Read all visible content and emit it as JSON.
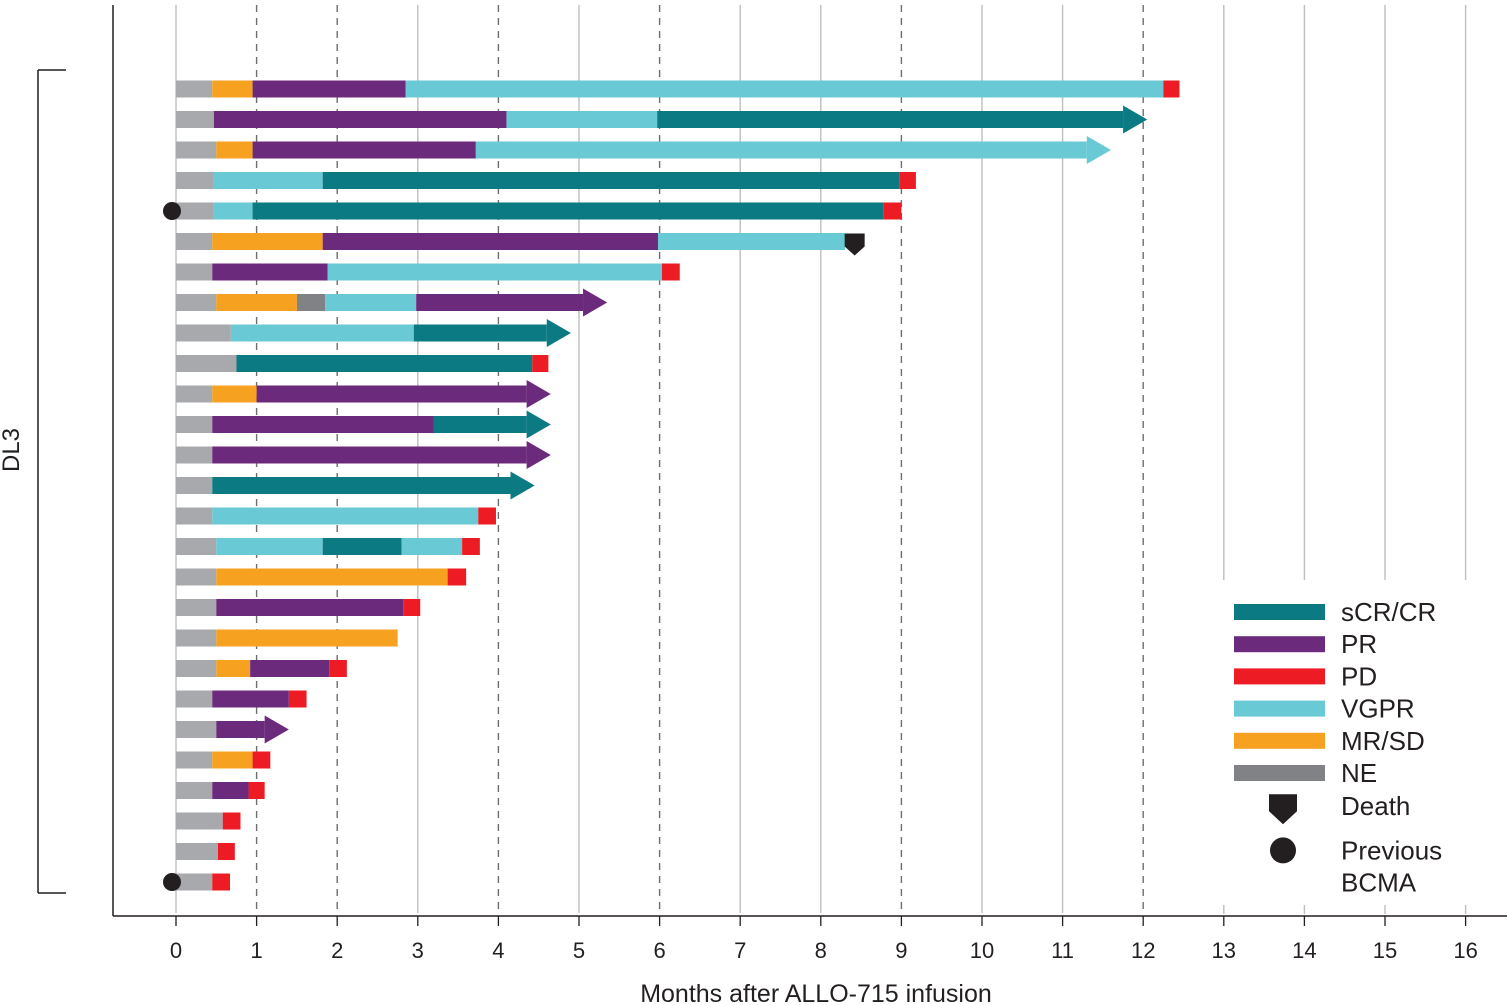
{
  "chart_data": {
    "type": "swimmer",
    "xlabel": "Months after ALLO-715 infusion",
    "xlim": [
      0,
      16
    ],
    "x_ticks": [
      "0",
      "1",
      "2",
      "3",
      "4",
      "5",
      "6",
      "7",
      "8",
      "9",
      "10",
      "11",
      "12",
      "13",
      "14",
      "15",
      "16"
    ],
    "dashed_gridlines_at": [
      1,
      2,
      4,
      6,
      9,
      12
    ],
    "group_label": "DL3",
    "colors": {
      "pre": "#a7a9ac",
      "sCR/CR": "#0b7a82",
      "PR": "#6c2a7c",
      "PD": "#ed1c24",
      "VGPR": "#69c9d4",
      "MR/SD": "#f7a120",
      "NE": "#808285",
      "marker": "#231f20"
    },
    "legend": [
      {
        "label": "sCR/CR",
        "key": "sCR/CR",
        "kind": "bar"
      },
      {
        "label": "PR",
        "key": "PR",
        "kind": "bar"
      },
      {
        "label": "PD",
        "key": "PD",
        "kind": "bar"
      },
      {
        "label": "VGPR",
        "key": "VGPR",
        "kind": "bar"
      },
      {
        "label": "MR/SD",
        "key": "MR/SD",
        "kind": "bar"
      },
      {
        "label": "NE",
        "key": "NE",
        "kind": "bar"
      },
      {
        "label": "Death",
        "key": "death",
        "kind": "death"
      },
      {
        "label": "Previous",
        "label2": "BCMA",
        "key": "bcma",
        "kind": "dot"
      }
    ],
    "patients": [
      {
        "segments": [
          [
            "pre",
            0,
            0.45
          ],
          [
            "MR/SD",
            0.45,
            0.95
          ],
          [
            "PR",
            0.95,
            2.85
          ],
          [
            "VGPR",
            2.85,
            12.25
          ],
          [
            "PD",
            12.25,
            12.45
          ]
        ],
        "ongoing": false
      },
      {
        "segments": [
          [
            "pre",
            0,
            0.47
          ],
          [
            "PR",
            0.47,
            4.1
          ],
          [
            "VGPR",
            4.1,
            5.97
          ],
          [
            "sCR/CR",
            5.97,
            11.75
          ]
        ],
        "ongoing": true,
        "end": 12.05
      },
      {
        "segments": [
          [
            "pre",
            0,
            0.5
          ],
          [
            "MR/SD",
            0.5,
            0.95
          ],
          [
            "PR",
            0.95,
            3.72
          ],
          [
            "VGPR",
            3.72,
            11.3
          ]
        ],
        "ongoing": true,
        "end": 11.6
      },
      {
        "segments": [
          [
            "pre",
            0,
            0.47
          ],
          [
            "VGPR",
            0.47,
            1.82
          ],
          [
            "sCR/CR",
            1.82,
            8.98
          ],
          [
            "PD",
            8.98,
            9.18
          ]
        ],
        "ongoing": false
      },
      {
        "segments": [
          [
            "pre",
            0,
            0.47
          ],
          [
            "VGPR",
            0.47,
            0.95
          ],
          [
            "sCR/CR",
            0.95,
            8.78
          ],
          [
            "PD",
            8.78,
            9.0
          ]
        ],
        "ongoing": false,
        "prior_bcma": true
      },
      {
        "segments": [
          [
            "pre",
            0,
            0.45
          ],
          [
            "MR/SD",
            0.45,
            1.82
          ],
          [
            "PR",
            1.82,
            5.98
          ],
          [
            "VGPR",
            5.98,
            8.3
          ]
        ],
        "ongoing": false,
        "death": 8.42
      },
      {
        "segments": [
          [
            "pre",
            0,
            0.45
          ],
          [
            "PR",
            0.45,
            1.88
          ],
          [
            "VGPR",
            1.88,
            6.03
          ],
          [
            "PD",
            6.03,
            6.25
          ]
        ],
        "ongoing": false
      },
      {
        "segments": [
          [
            "pre",
            0,
            0.5
          ],
          [
            "MR/SD",
            0.5,
            1.5
          ],
          [
            "NE",
            1.5,
            1.85
          ],
          [
            "VGPR",
            1.85,
            2.98
          ],
          [
            "PR",
            2.98,
            5.05
          ]
        ],
        "ongoing": true,
        "end": 5.35
      },
      {
        "segments": [
          [
            "pre",
            0,
            0.68
          ],
          [
            "VGPR",
            0.68,
            2.95
          ],
          [
            "sCR/CR",
            2.95,
            4.6
          ]
        ],
        "ongoing": true,
        "end": 4.9
      },
      {
        "segments": [
          [
            "pre",
            0,
            0.75
          ],
          [
            "sCR/CR",
            0.75,
            4.42
          ],
          [
            "PD",
            4.42,
            4.62
          ]
        ],
        "ongoing": false
      },
      {
        "segments": [
          [
            "pre",
            0,
            0.45
          ],
          [
            "MR/SD",
            0.45,
            1.0
          ],
          [
            "PR",
            1.0,
            4.35
          ]
        ],
        "ongoing": true,
        "end": 4.65
      },
      {
        "segments": [
          [
            "pre",
            0,
            0.45
          ],
          [
            "PR",
            0.45,
            3.2
          ],
          [
            "sCR/CR",
            3.2,
            4.35
          ]
        ],
        "ongoing": true,
        "end": 4.65
      },
      {
        "segments": [
          [
            "pre",
            0,
            0.45
          ],
          [
            "PR",
            0.45,
            4.35
          ]
        ],
        "ongoing": true,
        "end": 4.65
      },
      {
        "segments": [
          [
            "pre",
            0,
            0.45
          ],
          [
            "sCR/CR",
            0.45,
            4.15
          ]
        ],
        "ongoing": true,
        "end": 4.45
      },
      {
        "segments": [
          [
            "pre",
            0,
            0.45
          ],
          [
            "VGPR",
            0.45,
            3.75
          ],
          [
            "PD",
            3.75,
            3.97
          ]
        ],
        "ongoing": false
      },
      {
        "segments": [
          [
            "pre",
            0,
            0.5
          ],
          [
            "VGPR",
            0.5,
            1.82
          ],
          [
            "sCR/CR",
            1.82,
            2.8
          ],
          [
            "VGPR",
            2.8,
            3.55
          ],
          [
            "PD",
            3.55,
            3.77
          ]
        ],
        "ongoing": false
      },
      {
        "segments": [
          [
            "pre",
            0,
            0.5
          ],
          [
            "MR/SD",
            0.5,
            3.37
          ],
          [
            "PD",
            3.37,
            3.6
          ]
        ],
        "ongoing": false
      },
      {
        "segments": [
          [
            "pre",
            0,
            0.5
          ],
          [
            "PR",
            0.5,
            2.82
          ],
          [
            "PD",
            2.82,
            3.03
          ]
        ],
        "ongoing": false
      },
      {
        "segments": [
          [
            "pre",
            0,
            0.5
          ],
          [
            "MR/SD",
            0.5,
            2.75
          ]
        ],
        "ongoing": false
      },
      {
        "segments": [
          [
            "pre",
            0,
            0.5
          ],
          [
            "MR/SD",
            0.5,
            0.92
          ],
          [
            "PR",
            0.92,
            1.9
          ],
          [
            "PD",
            1.9,
            2.12
          ]
        ],
        "ongoing": false
      },
      {
        "segments": [
          [
            "pre",
            0,
            0.45
          ],
          [
            "PR",
            0.45,
            1.4
          ],
          [
            "PD",
            1.4,
            1.62
          ]
        ],
        "ongoing": false
      },
      {
        "segments": [
          [
            "pre",
            0,
            0.5
          ],
          [
            "PR",
            0.5,
            1.1
          ]
        ],
        "ongoing": true,
        "end": 1.4
      },
      {
        "segments": [
          [
            "pre",
            0,
            0.45
          ],
          [
            "MR/SD",
            0.45,
            0.95
          ],
          [
            "PD",
            0.95,
            1.17
          ]
        ],
        "ongoing": false
      },
      {
        "segments": [
          [
            "pre",
            0,
            0.45
          ],
          [
            "PR",
            0.45,
            0.9
          ],
          [
            "PD",
            0.9,
            1.1
          ]
        ],
        "ongoing": false
      },
      {
        "segments": [
          [
            "pre",
            0,
            0.58
          ],
          [
            "PD",
            0.58,
            0.8
          ]
        ],
        "ongoing": false
      },
      {
        "segments": [
          [
            "pre",
            0,
            0.52
          ],
          [
            "PD",
            0.52,
            0.73
          ]
        ],
        "ongoing": false
      },
      {
        "segments": [
          [
            "pre",
            0,
            0.45
          ],
          [
            "PD",
            0.45,
            0.67
          ]
        ],
        "ongoing": false,
        "prior_bcma": true
      }
    ]
  }
}
